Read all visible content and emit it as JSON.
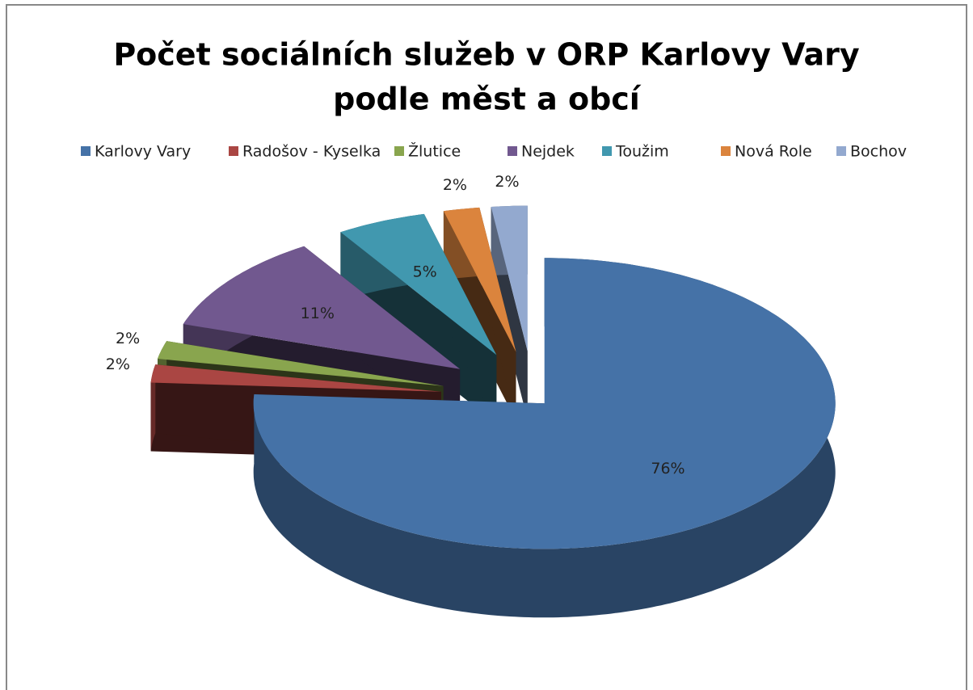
{
  "chart_data": {
    "type": "pie",
    "title": [
      "Počet sociálních služeb v ORP Karlovy Vary",
      "podle měst a obcí"
    ],
    "categories": [
      "Karlovy Vary",
      "Radošov - Kyselka",
      "Žlutice",
      "Nejdek",
      "Toužim",
      "Nová Role",
      "Bochov"
    ],
    "values": [
      76,
      2,
      2,
      11,
      5,
      2,
      2
    ],
    "value_labels": [
      "76%",
      "2%",
      "2%",
      "11%",
      "5%",
      "2%",
      "2%"
    ],
    "colors": [
      "#4572a7",
      "#aa4643",
      "#89a54e",
      "#71588f",
      "#4198af",
      "#db843d",
      "#93a9cf"
    ],
    "legend": "top"
  }
}
